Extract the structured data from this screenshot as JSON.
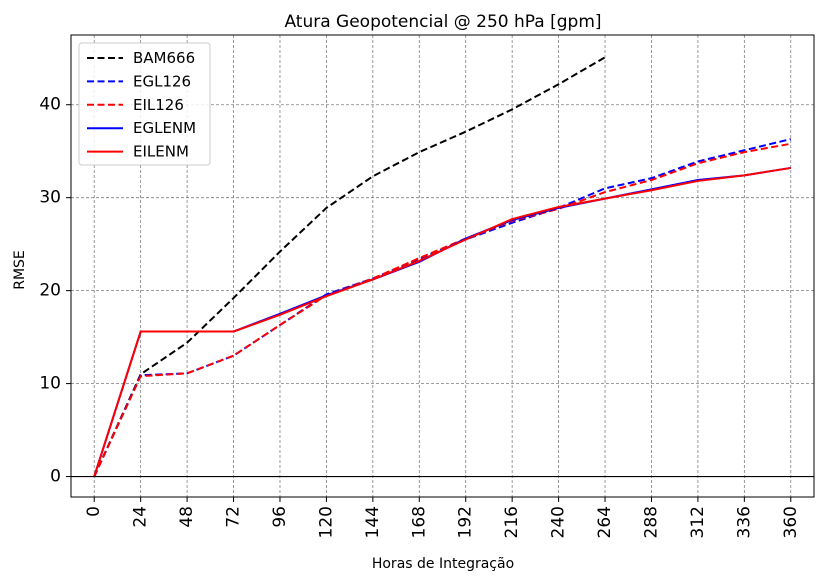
{
  "chart_data": {
    "type": "line",
    "title": "Atura Geopotencial @ 250 hPa [gpm]",
    "xlabel": "Horas de Integração",
    "ylabel": "RMSE",
    "x": [
      0,
      24,
      48,
      72,
      96,
      120,
      144,
      168,
      192,
      216,
      240,
      264,
      288,
      312,
      336,
      360
    ],
    "xlim": [
      -12,
      372
    ],
    "ylim": [
      -2.2,
      47.5
    ],
    "yticks": [
      0,
      10,
      20,
      30,
      40
    ],
    "grid": true,
    "legend_position": "top-left",
    "series": [
      {
        "name": "BAM666",
        "color": "#000000",
        "dash": "dashed",
        "values": [
          0,
          11,
          14.4,
          19.2,
          24.2,
          28.9,
          32.3,
          34.9,
          37.1,
          39.5,
          42.2,
          45.1,
          null,
          null,
          null,
          null
        ]
      },
      {
        "name": "EGL126",
        "color": "#0000ff",
        "dash": "dashed",
        "values": [
          0,
          10.9,
          11.1,
          13.0,
          16.3,
          19.6,
          21.3,
          23.4,
          25.5,
          27.3,
          28.9,
          31.0,
          32.1,
          33.9,
          35.1,
          36.3
        ]
      },
      {
        "name": "EIL126",
        "color": "#ff0000",
        "dash": "dashed",
        "values": [
          0,
          10.8,
          11.1,
          13.0,
          16.3,
          19.5,
          21.3,
          23.5,
          25.6,
          27.5,
          28.8,
          30.6,
          31.9,
          33.7,
          34.9,
          35.8
        ]
      },
      {
        "name": "EGLENM",
        "color": "#0000ff",
        "dash": "solid",
        "values": [
          0,
          15.6,
          15.6,
          15.6,
          17.5,
          19.5,
          21.2,
          23.1,
          25.6,
          27.6,
          28.9,
          29.9,
          30.9,
          31.9,
          32.4,
          33.2
        ]
      },
      {
        "name": "EILENM",
        "color": "#ff0000",
        "dash": "solid",
        "values": [
          0,
          15.6,
          15.6,
          15.6,
          17.4,
          19.4,
          21.2,
          23.2,
          25.5,
          27.7,
          29.0,
          29.9,
          30.8,
          31.8,
          32.4,
          33.2
        ]
      }
    ]
  }
}
